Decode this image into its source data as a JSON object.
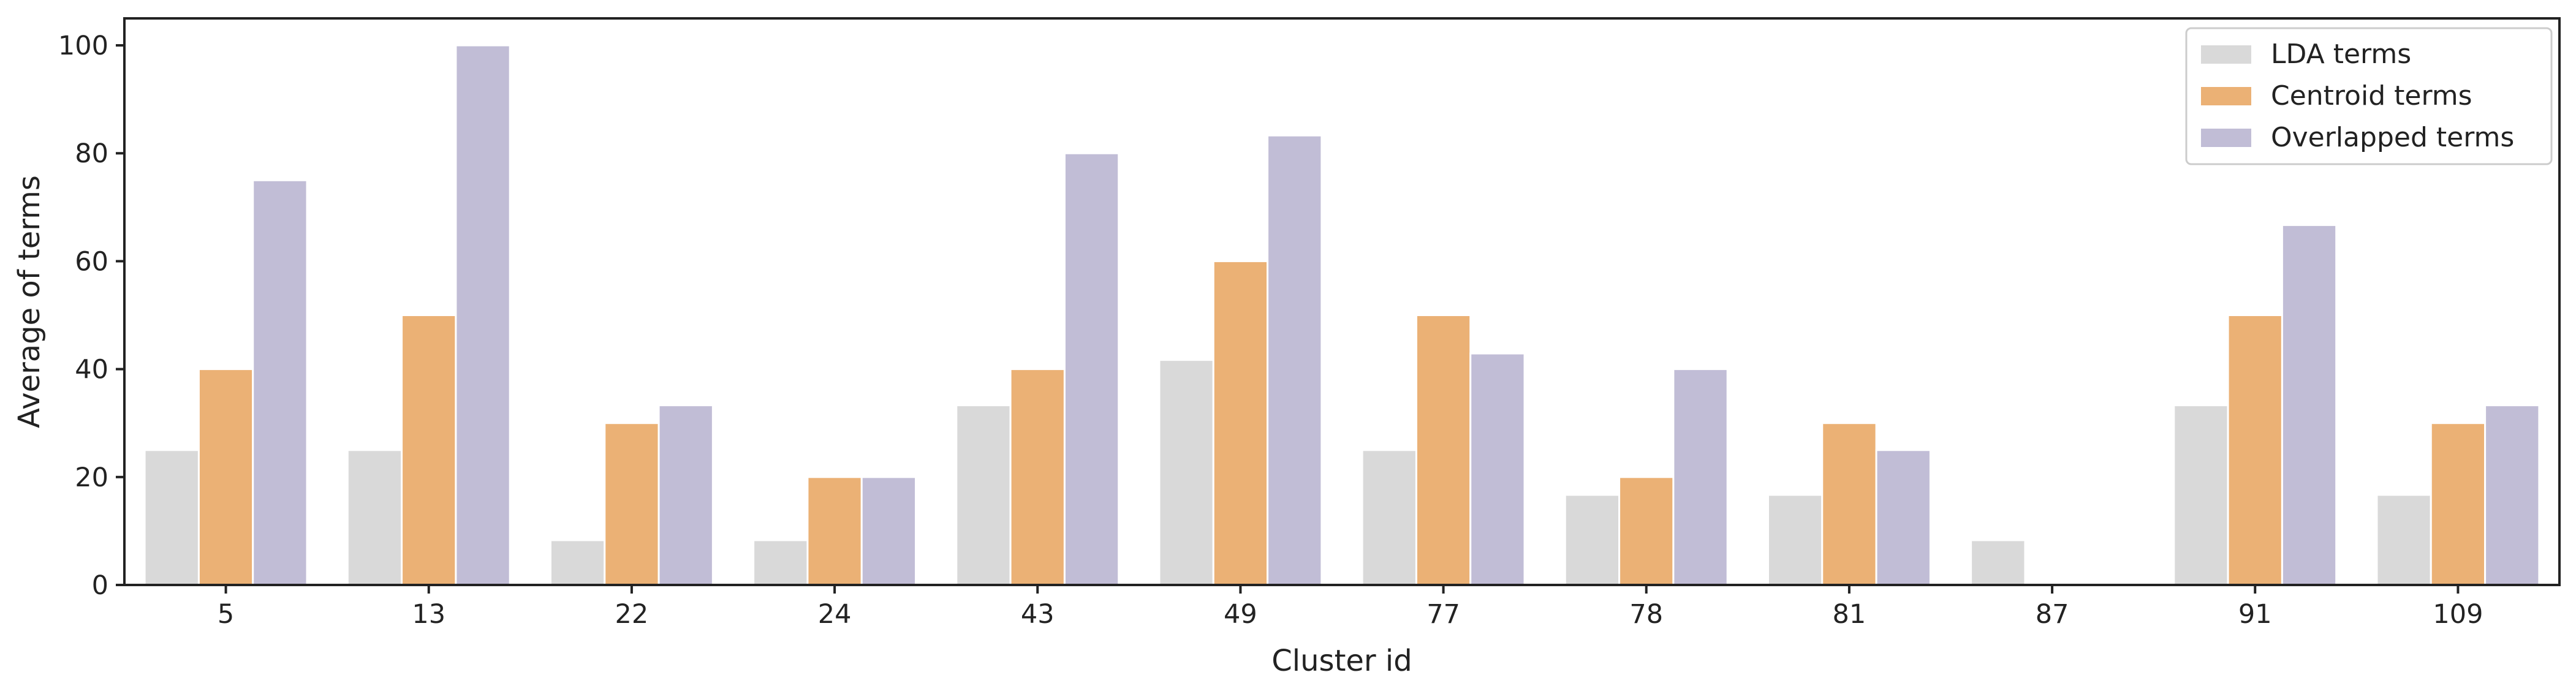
{
  "chart_data": {
    "type": "bar",
    "title": "",
    "xlabel": "Cluster id",
    "ylabel": "Average of terms",
    "categories": [
      "5",
      "13",
      "22",
      "24",
      "43",
      "49",
      "77",
      "78",
      "81",
      "87",
      "91",
      "109"
    ],
    "series": [
      {
        "name": "LDA terms",
        "color": "#d9d9d9",
        "values": [
          25,
          25,
          8.3,
          8.3,
          33.3,
          41.7,
          25,
          16.7,
          16.7,
          8.3,
          33.3,
          16.7
        ]
      },
      {
        "name": "Centroid terms",
        "color": "#ebb175",
        "values": [
          40,
          50,
          30,
          20,
          40,
          60,
          50,
          20,
          30,
          0,
          50,
          30
        ]
      },
      {
        "name": "Overlapped terms",
        "color": "#c1bdd6",
        "values": [
          75,
          100,
          33.3,
          20,
          80,
          83.3,
          42.9,
          40,
          25,
          0,
          66.7,
          33.3
        ]
      }
    ],
    "ylim": [
      0,
      105
    ],
    "yticks": [
      0,
      20,
      40,
      60,
      80,
      100
    ],
    "grid": false,
    "legend_position": "top-right"
  }
}
